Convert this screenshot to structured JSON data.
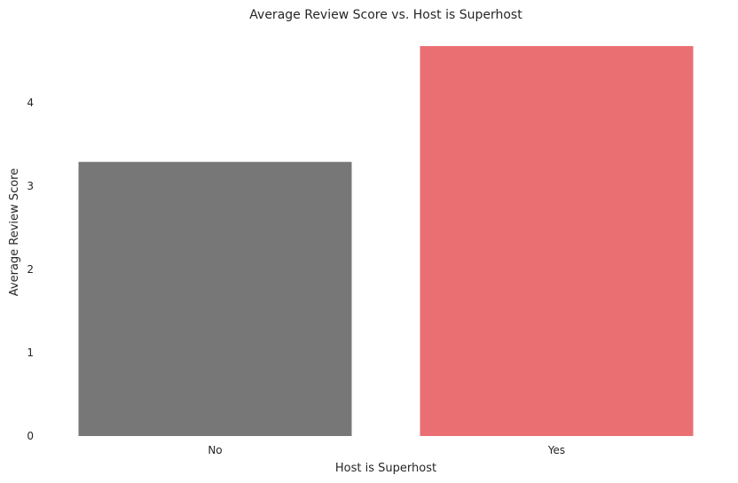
{
  "chart_data": {
    "type": "bar",
    "title": "Average Review Score vs. Host is Superhost",
    "xlabel": "Host is Superhost",
    "ylabel": "Average Review Score",
    "categories": [
      "No",
      "Yes"
    ],
    "values": [
      3.29,
      4.68
    ],
    "colors": [
      "#777777",
      "#E96F72"
    ],
    "yticks": [
      0,
      1,
      2,
      3,
      4
    ],
    "ylim": [
      0,
      4.68
    ],
    "grid": false,
    "legend": "none"
  }
}
